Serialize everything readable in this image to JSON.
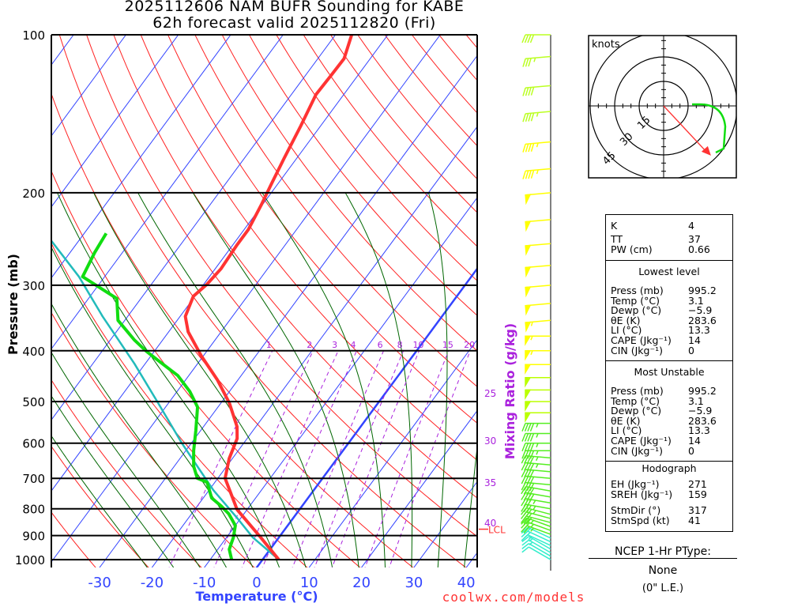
{
  "header": {
    "line1": "2025112606 NAM BUFR Sounding for KABE",
    "line2": "62h forecast valid 2025112820 (Fri)"
  },
  "footer": {
    "credit": "coolwx.com/models"
  },
  "colors": {
    "temp": "#ff3333",
    "dewp": "#11dd11",
    "parcel": "#22bbbb",
    "isotherm": "#3344ff",
    "dry": "#ff2222",
    "moist": "#006600",
    "mix": "#aa22dd"
  },
  "chart_data": {
    "type": "line",
    "title": "2025112606 NAM BUFR Sounding for KABE",
    "xlabel": "Temperature (°C)",
    "ylabel": "Pressure (mb)",
    "mixlabel": "Mixing Ratio (g/kg)",
    "xlim": [
      -40,
      42
    ],
    "ylim": [
      1034,
      100
    ],
    "x_ticks": [
      "-30",
      "-20",
      "-10",
      "0",
      "10",
      "20",
      "30",
      "40"
    ],
    "y_ticks": [
      "100",
      "200",
      "300",
      "400",
      "500",
      "600",
      "700",
      "800",
      "900",
      "1000"
    ],
    "right_temp_labels": [
      "25",
      "30",
      "35",
      "40"
    ],
    "mix_ratios": [
      "1",
      "2",
      "3",
      "4",
      "6",
      "8",
      "10",
      "15",
      "20"
    ],
    "lcl_label": "LCL",
    "lcl_p": 875,
    "temperature": [
      [
        1000,
        3.1
      ],
      [
        907,
        -3.5
      ],
      [
        803,
        -11.9
      ],
      [
        700,
        -18.6
      ],
      [
        642,
        -20.6
      ],
      [
        588,
        -21.9
      ],
      [
        558,
        -23.6
      ],
      [
        503,
        -28.4
      ],
      [
        454,
        -34.0
      ],
      [
        409,
        -40.4
      ],
      [
        368,
        -46.3
      ],
      [
        344,
        -49.0
      ],
      [
        315,
        -50.3
      ],
      [
        299,
        -49.4
      ],
      [
        279,
        -48.9
      ],
      [
        251,
        -49.2
      ],
      [
        235,
        -49.2
      ],
      [
        211,
        -50.2
      ],
      [
        191,
        -51.3
      ],
      [
        172,
        -52.4
      ],
      [
        149,
        -53.8
      ],
      [
        130,
        -55.3
      ],
      [
        119,
        -55.1
      ],
      [
        111,
        -55.0
      ],
      [
        100,
        -56.9
      ]
    ],
    "dewpoint": [
      [
        1000,
        -5.9
      ],
      [
        956,
        -7.8
      ],
      [
        907,
        -8.7
      ],
      [
        861,
        -10.0
      ],
      [
        818,
        -12.9
      ],
      [
        790,
        -15.5
      ],
      [
        763,
        -18.4
      ],
      [
        712,
        -21.5
      ],
      [
        700,
        -23.9
      ],
      [
        664,
        -26.3
      ],
      [
        620,
        -28.5
      ],
      [
        568,
        -30.9
      ],
      [
        512,
        -33.9
      ],
      [
        478,
        -37.6
      ],
      [
        446,
        -42.1
      ],
      [
        423,
        -46.8
      ],
      [
        401,
        -51.5
      ],
      [
        381,
        -55.5
      ],
      [
        350,
        -61.3
      ],
      [
        318,
        -64.6
      ],
      [
        289,
        -74.2
      ],
      [
        260,
        -75.3
      ],
      [
        239,
        -75.8
      ]
    ],
    "parcel": [
      [
        1000,
        3.1
      ],
      [
        907,
        -5.0
      ],
      [
        832,
        -10.8
      ],
      [
        737,
        -19.2
      ],
      [
        599,
        -31.9
      ],
      [
        503,
        -42.0
      ],
      [
        423,
        -52.1
      ],
      [
        344,
        -64.8
      ],
      [
        289,
        -74.9
      ],
      [
        247,
        -85.2
      ]
    ],
    "winds": [
      [
        1000,
        300,
        10
      ],
      [
        985,
        300,
        12
      ],
      [
        970,
        300,
        14
      ],
      [
        955,
        300,
        15
      ],
      [
        940,
        295,
        17
      ],
      [
        925,
        295,
        19
      ],
      [
        910,
        295,
        21
      ],
      [
        895,
        290,
        23
      ],
      [
        880,
        290,
        25
      ],
      [
        865,
        290,
        27
      ],
      [
        850,
        285,
        30
      ],
      [
        835,
        285,
        32
      ],
      [
        820,
        285,
        34
      ],
      [
        800,
        280,
        35
      ],
      [
        780,
        280,
        36
      ],
      [
        760,
        280,
        38
      ],
      [
        740,
        280,
        38
      ],
      [
        720,
        275,
        40
      ],
      [
        700,
        275,
        40
      ],
      [
        680,
        275,
        42
      ],
      [
        660,
        275,
        44
      ],
      [
        640,
        275,
        45
      ],
      [
        620,
        270,
        45
      ],
      [
        600,
        270,
        45
      ],
      [
        575,
        270,
        46
      ],
      [
        550,
        270,
        47
      ],
      [
        525,
        270,
        48
      ],
      [
        500,
        270,
        48
      ],
      [
        475,
        270,
        50
      ],
      [
        450,
        270,
        50
      ],
      [
        425,
        270,
        52
      ],
      [
        400,
        270,
        55
      ],
      [
        375,
        270,
        55
      ],
      [
        350,
        265,
        55
      ],
      [
        325,
        265,
        52
      ],
      [
        300,
        265,
        50
      ],
      [
        275,
        265,
        50
      ],
      [
        250,
        265,
        50
      ],
      [
        225,
        265,
        48
      ],
      [
        200,
        265,
        48
      ],
      [
        180,
        265,
        45
      ],
      [
        160,
        265,
        45
      ],
      [
        140,
        265,
        45
      ],
      [
        125,
        265,
        40
      ],
      [
        110,
        265,
        35
      ],
      [
        100,
        270,
        40
      ]
    ]
  },
  "hodograph": {
    "unit_label": "knots",
    "ring_labels": [
      "15",
      "30",
      "45"
    ],
    "storm_dir": 317,
    "storm_spd": 41
  },
  "indices": {
    "k": {
      "label": "K",
      "value": "4"
    },
    "tt": {
      "label": "TT",
      "value": "37"
    },
    "pw": {
      "label": "PW (cm)",
      "value": "0.66"
    },
    "lowest": {
      "title": "Lowest level",
      "rows": [
        {
          "label": "Press (mb)",
          "value": "995.2"
        },
        {
          "label": "Temp (°C)",
          "value": "3.1"
        },
        {
          "label": "Dewp (°C)",
          "value": "−5.9"
        },
        {
          "label": "θE (K)",
          "value": "283.6"
        },
        {
          "label": "LI (°C)",
          "value": "13.3"
        },
        {
          "label": "CAPE (Jkg⁻¹)",
          "value": "14"
        },
        {
          "label": "CIN (Jkg⁻¹)",
          "value": "0"
        }
      ]
    },
    "mu": {
      "title": "Most Unstable",
      "rows": [
        {
          "label": "Press (mb)",
          "value": "995.2"
        },
        {
          "label": "Temp (°C)",
          "value": "3.1"
        },
        {
          "label": "Dewp (°C)",
          "value": "−5.9"
        },
        {
          "label": "θE (K)",
          "value": "283.6"
        },
        {
          "label": "LI (°C)",
          "value": "13.3"
        },
        {
          "label": "CAPE (Jkg⁻¹)",
          "value": "14"
        },
        {
          "label": "CIN (Jkg⁻¹)",
          "value": "0"
        }
      ]
    },
    "hodo": {
      "title": "Hodograph",
      "rows": [
        {
          "label": "EH (Jkg⁻¹)",
          "value": "271"
        },
        {
          "label": "SREH (Jkg⁻¹)",
          "value": "159"
        },
        {
          "label": "StmDir (°)",
          "value": "317"
        },
        {
          "label": "StmSpd (kt)",
          "value": "41"
        }
      ]
    }
  },
  "ptype": {
    "title": "NCEP 1-Hr PType:",
    "value": "None",
    "amount": "(0\" L.E.)"
  }
}
